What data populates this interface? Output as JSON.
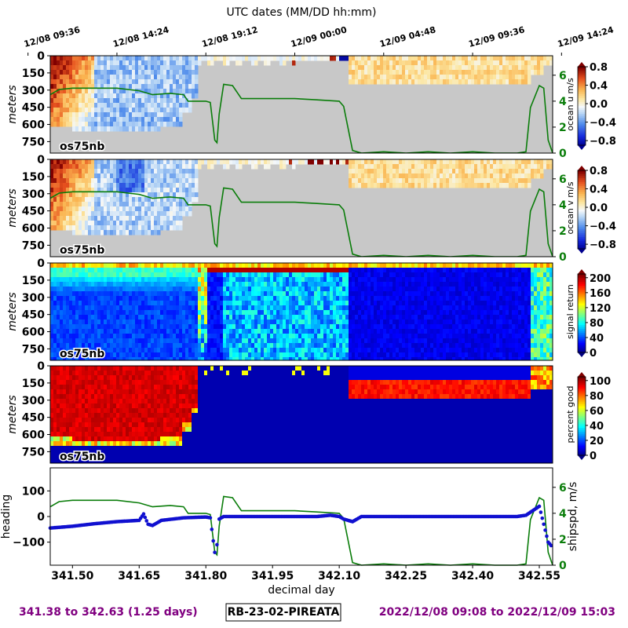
{
  "chart_data": {
    "type": "heatmap",
    "top_axis_title": "UTC dates (MM/DD hh:mm)",
    "top_ticks": [
      "12/08 09:36",
      "12/08 14:24",
      "12/08 19:12",
      "12/09 00:00",
      "12/09 04:48",
      "12/09 09:36",
      "12/09 14:24"
    ],
    "top_tick_days": [
      341.4,
      341.6,
      341.8,
      342.0,
      342.2,
      342.4,
      342.6
    ],
    "x_range": [
      341.45,
      342.58
    ],
    "depth_ticks": [
      "0",
      "150",
      "300",
      "450",
      "600",
      "750"
    ],
    "depth_values": [
      0,
      150,
      300,
      450,
      600,
      750
    ],
    "depth_range": [
      0,
      850
    ],
    "depth_label": "meters",
    "instrument_label": "os75nb",
    "speed_ticks": [
      "0",
      "2",
      "4",
      "6"
    ],
    "speed_values": [
      0,
      2,
      4,
      6
    ],
    "speed_range": [
      0,
      7.5
    ],
    "panels": [
      {
        "name": "ocean u",
        "colorbar_label": "ocean u m/s",
        "colorbar_ticks": [
          "0.8",
          "0.4",
          "0.0",
          "−0.4",
          "−0.8"
        ],
        "colorbar_values": [
          0.8,
          0.4,
          0.0,
          -0.4,
          -0.8
        ],
        "colorbar_range": [
          -0.9,
          0.8
        ],
        "colormap": "rdylbu"
      },
      {
        "name": "ocean v",
        "colorbar_label": "ocean v m/s",
        "colorbar_ticks": [
          "0.8",
          "0.4",
          "0.0",
          "−0.4",
          "−0.8"
        ],
        "colorbar_values": [
          0.8,
          0.4,
          0.0,
          -0.4,
          -0.8
        ],
        "colorbar_range": [
          -0.9,
          0.8
        ],
        "colormap": "rdylbu"
      },
      {
        "name": "signal return",
        "colorbar_label": "signal return",
        "colorbar_ticks": [
          "200",
          "160",
          "120",
          "80",
          "40",
          "0"
        ],
        "colorbar_values": [
          200,
          160,
          120,
          80,
          40,
          0
        ],
        "colorbar_range": [
          0,
          210
        ],
        "colormap": "jet"
      },
      {
        "name": "percent good",
        "colorbar_label": "percent good",
        "colorbar_ticks": [
          "100",
          "80",
          "60",
          "40",
          "20",
          "0"
        ],
        "colorbar_values": [
          100,
          80,
          60,
          40,
          20,
          0
        ],
        "colorbar_range": [
          0,
          105
        ],
        "colormap": "jet"
      }
    ],
    "ship_speed_series": {
      "x": [
        341.45,
        341.47,
        341.5,
        341.55,
        341.6,
        341.65,
        341.68,
        341.72,
        341.75,
        341.76,
        341.8,
        341.81,
        341.82,
        341.825,
        341.83,
        341.84,
        341.86,
        341.88,
        341.9,
        341.95,
        342.0,
        342.05,
        342.1,
        342.11,
        342.13,
        342.15,
        342.2,
        342.25,
        342.3,
        342.35,
        342.4,
        342.45,
        342.5,
        342.52,
        342.53,
        342.55,
        342.56,
        342.57,
        342.58
      ],
      "y": [
        4.5,
        4.9,
        5.0,
        5.0,
        5.0,
        4.8,
        4.5,
        4.6,
        4.5,
        4.0,
        4.0,
        3.9,
        1.0,
        0.8,
        3.0,
        5.3,
        5.2,
        4.2,
        4.2,
        4.2,
        4.2,
        4.1,
        4.0,
        3.6,
        0.2,
        0.0,
        0.1,
        0.0,
        0.1,
        0.0,
        0.1,
        0.0,
        0.0,
        0.1,
        3.5,
        5.2,
        5.0,
        1.0,
        0.0
      ]
    },
    "heading_series": {
      "x": [
        341.45,
        341.5,
        341.55,
        341.6,
        341.65,
        341.66,
        341.67,
        341.68,
        341.7,
        341.75,
        341.8,
        341.81,
        341.82,
        341.825,
        341.83,
        341.84,
        341.9,
        341.95,
        342.0,
        342.05,
        342.08,
        342.1,
        342.11,
        342.13,
        342.15,
        342.2,
        342.3,
        342.4,
        342.45,
        342.5,
        342.52,
        342.55,
        342.56,
        342.57,
        342.58
      ],
      "y": [
        -45,
        -38,
        -28,
        -20,
        -15,
        10,
        -30,
        -35,
        -15,
        -5,
        -2,
        -5,
        -140,
        -110,
        -10,
        0,
        0,
        0,
        0,
        0,
        5,
        0,
        -10,
        -20,
        0,
        0,
        0,
        0,
        0,
        0,
        5,
        40,
        -30,
        -100,
        -120
      ]
    },
    "bottom_panel": {
      "heading_label": "heading",
      "heading_ticks": [
        "100",
        "0",
        "−100"
      ],
      "heading_values": [
        100,
        0,
        -100
      ],
      "heading_range": [
        -190,
        190
      ],
      "speed_label": "shipspd, m/s",
      "speed_ticks": [
        "0",
        "2",
        "4",
        "6"
      ],
      "speed_values": [
        0,
        2,
        4,
        6
      ],
      "speed_range": [
        0,
        7.5
      ]
    },
    "x_ticks": [
      "341.50",
      "341.65",
      "341.80",
      "341.95",
      "342.10",
      "342.25",
      "342.40",
      "342.55"
    ],
    "x_tick_values": [
      341.5,
      341.65,
      341.8,
      341.95,
      342.1,
      342.25,
      342.4,
      342.55
    ],
    "xlabel": "decimal day"
  },
  "footer": {
    "left": "341.38 to 342.63 (1.25 days)",
    "center": "RB-23-02-PIREATA",
    "right": "2022/12/08 09:08 to 2022/12/09 15:03"
  },
  "colors": {
    "speed_line": "#0a7d0a",
    "heading_dots": "#1010d0",
    "no_data": "#c8c8c8",
    "footer_purple": "#800080"
  }
}
